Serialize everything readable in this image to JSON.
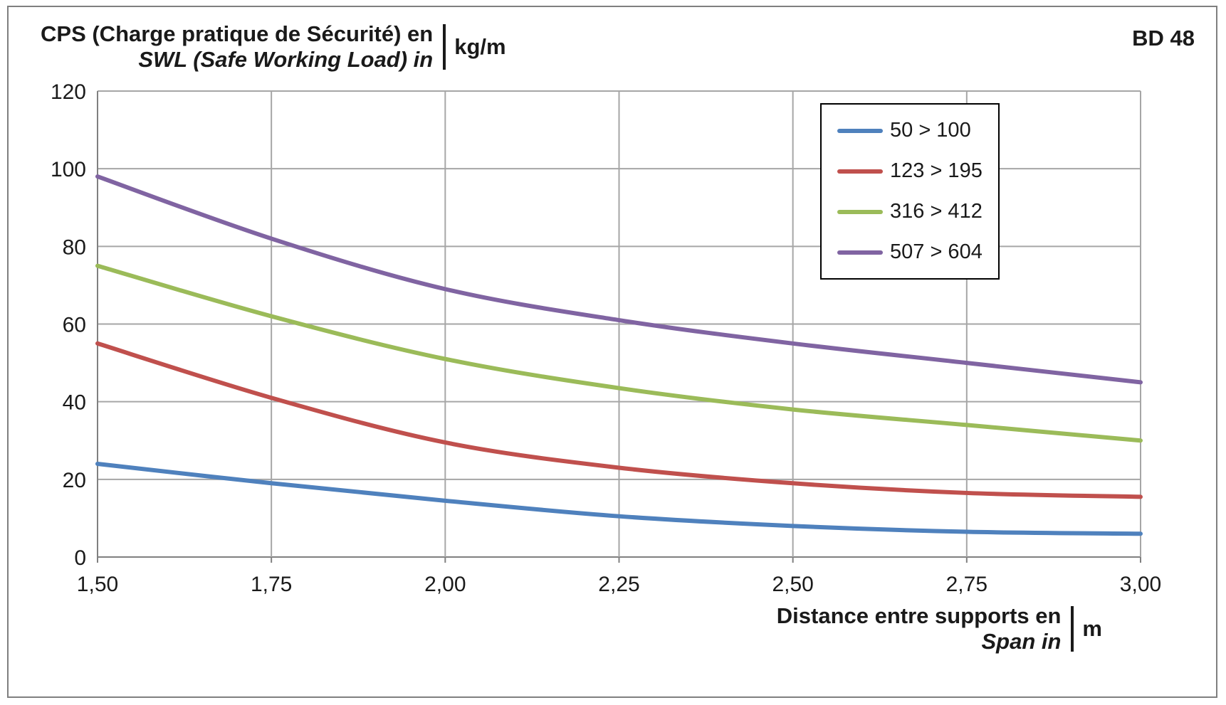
{
  "chart_data": {
    "type": "line",
    "title_line1": "CPS (Charge pratique de Sécurité) en",
    "title_line2": "SWL (Safe Working Load) in",
    "y_unit": "kg/m",
    "code": "BD 48",
    "xlabel_line1": "Distance entre supports en",
    "xlabel_line2": "Span in",
    "x_unit": "m",
    "x": [
      1.5,
      1.75,
      2.0,
      2.25,
      2.5,
      2.75,
      3.0
    ],
    "x_tick_labels": [
      "1,50",
      "1,75",
      "2,00",
      "2,25",
      "2,50",
      "2,75",
      "3,00"
    ],
    "y_tick_labels": [
      "0",
      "20",
      "40",
      "60",
      "80",
      "100",
      "120"
    ],
    "xlim": [
      1.5,
      3.0
    ],
    "ylim": [
      0,
      120
    ],
    "y_step": 20,
    "grid": true,
    "legend_position": "top-right",
    "grid_color": "#a6a6a6",
    "axis_color": "#808080",
    "text_color": "#1a1a1a",
    "series": [
      {
        "name": "50 > 100",
        "color": "#4F81BD",
        "values": [
          24,
          19,
          14.5,
          10.5,
          8,
          6.5,
          6
        ]
      },
      {
        "name": "123 > 195",
        "color": "#C0504D",
        "values": [
          55,
          41,
          29.5,
          23,
          19,
          16.5,
          15.5
        ]
      },
      {
        "name": "316 > 412",
        "color": "#9BBB59",
        "values": [
          75,
          62,
          51,
          43.5,
          38,
          34,
          30
        ]
      },
      {
        "name": "507 > 604",
        "color": "#8064A2",
        "values": [
          98,
          82,
          69,
          61,
          55,
          50,
          45
        ]
      }
    ]
  }
}
